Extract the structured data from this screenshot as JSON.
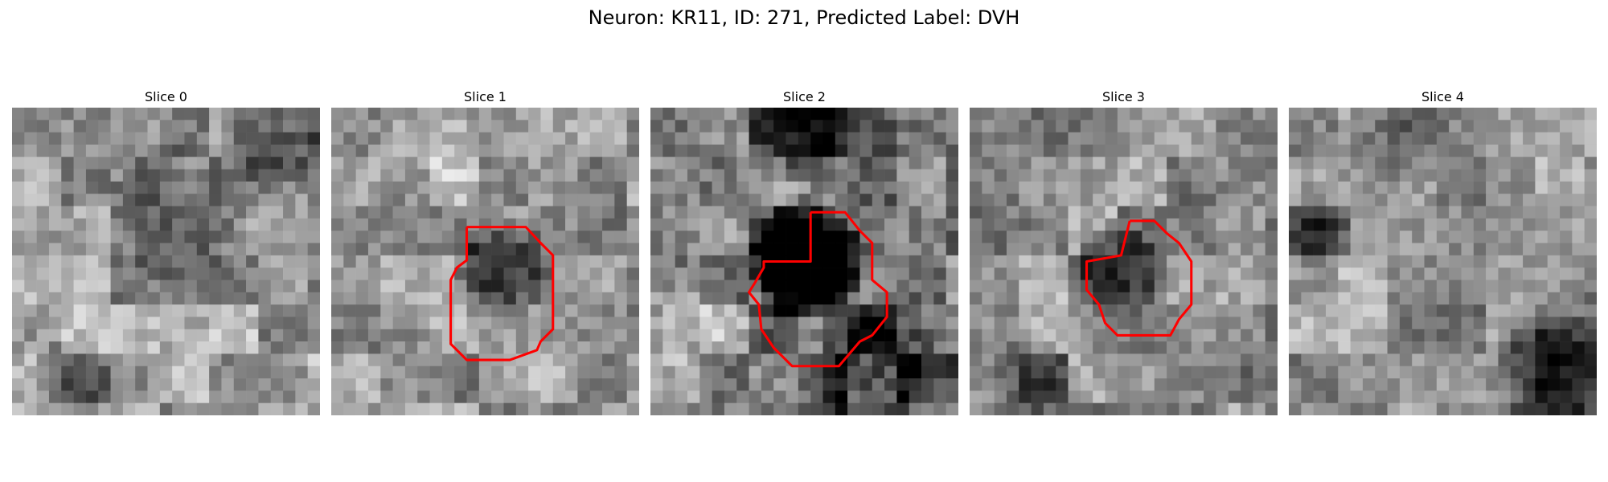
{
  "figure": {
    "title": "Neuron: KR11, ID: 271, Predicted Label: DVH",
    "contour_color": "#ff0000",
    "panels": [
      {
        "title": "Slice 0",
        "seed": 11,
        "base": 0.62,
        "contrast": 0.26,
        "blobs": [
          [
            0.55,
            0.35,
            0.25,
            -0.25
          ],
          [
            0.85,
            0.1,
            0.18,
            -0.35
          ],
          [
            0.2,
            0.9,
            0.15,
            -0.2
          ]
        ],
        "contour": []
      },
      {
        "title": "Slice 1",
        "seed": 23,
        "base": 0.6,
        "contrast": 0.25,
        "blobs": [
          [
            0.55,
            0.53,
            0.17,
            -0.45
          ],
          [
            0.3,
            0.15,
            0.2,
            0.1
          ]
        ],
        "contour": [
          [
            11,
            9.7
          ],
          [
            15.8,
            9.7
          ],
          [
            17,
            11
          ],
          [
            18,
            12
          ],
          [
            18,
            18
          ],
          [
            17,
            19
          ],
          [
            16.7,
            19.7
          ],
          [
            14.5,
            20.5
          ],
          [
            11,
            20.5
          ],
          [
            9.7,
            19.2
          ],
          [
            9.7,
            14
          ],
          [
            10.2,
            13
          ],
          [
            11,
            12.4
          ],
          [
            11,
            9.7
          ]
        ]
      },
      {
        "title": "Slice 2",
        "seed": 37,
        "base": 0.52,
        "contrast": 0.3,
        "blobs": [
          [
            0.5,
            0.5,
            0.21,
            -0.95
          ],
          [
            0.75,
            0.85,
            0.25,
            -0.4
          ],
          [
            0.5,
            0.05,
            0.2,
            -0.35
          ],
          [
            0.1,
            0.7,
            0.15,
            0.2
          ]
        ],
        "contour": [
          [
            13,
            8.5
          ],
          [
            15.8,
            8.5
          ],
          [
            17,
            10
          ],
          [
            18,
            11
          ],
          [
            18,
            14
          ],
          [
            19.2,
            15
          ],
          [
            19.2,
            17
          ],
          [
            18,
            18.5
          ],
          [
            17,
            19
          ],
          [
            15.3,
            21
          ],
          [
            11.5,
            21
          ],
          [
            10,
            19.5
          ],
          [
            9,
            18
          ],
          [
            8.8,
            16
          ],
          [
            8,
            15
          ],
          [
            8.5,
            14.2
          ],
          [
            9.2,
            13
          ],
          [
            9.2,
            12.5
          ],
          [
            13,
            12.5
          ],
          [
            13,
            8.5
          ]
        ]
      },
      {
        "title": "Slice 3",
        "seed": 53,
        "base": 0.58,
        "contrast": 0.26,
        "blobs": [
          [
            0.48,
            0.52,
            0.16,
            -0.35
          ],
          [
            0.2,
            0.9,
            0.15,
            -0.25
          ]
        ],
        "contour": [
          [
            13,
            9.2
          ],
          [
            15,
            9.2
          ],
          [
            16,
            10.2
          ],
          [
            17,
            11
          ],
          [
            18,
            12.5
          ],
          [
            18,
            16
          ],
          [
            17,
            17.2
          ],
          [
            16.3,
            18.5
          ],
          [
            12,
            18.5
          ],
          [
            11,
            17.5
          ],
          [
            10.5,
            16
          ],
          [
            9.5,
            14.8
          ],
          [
            9.5,
            12.5
          ],
          [
            12.3,
            12
          ],
          [
            13,
            9.2
          ]
        ]
      },
      {
        "title": "Slice 4",
        "seed": 71,
        "base": 0.58,
        "contrast": 0.24,
        "blobs": [
          [
            0.85,
            0.85,
            0.22,
            -0.45
          ],
          [
            0.1,
            0.4,
            0.12,
            -0.35
          ],
          [
            0.35,
            0.08,
            0.18,
            -0.2
          ]
        ],
        "contour": []
      }
    ]
  }
}
